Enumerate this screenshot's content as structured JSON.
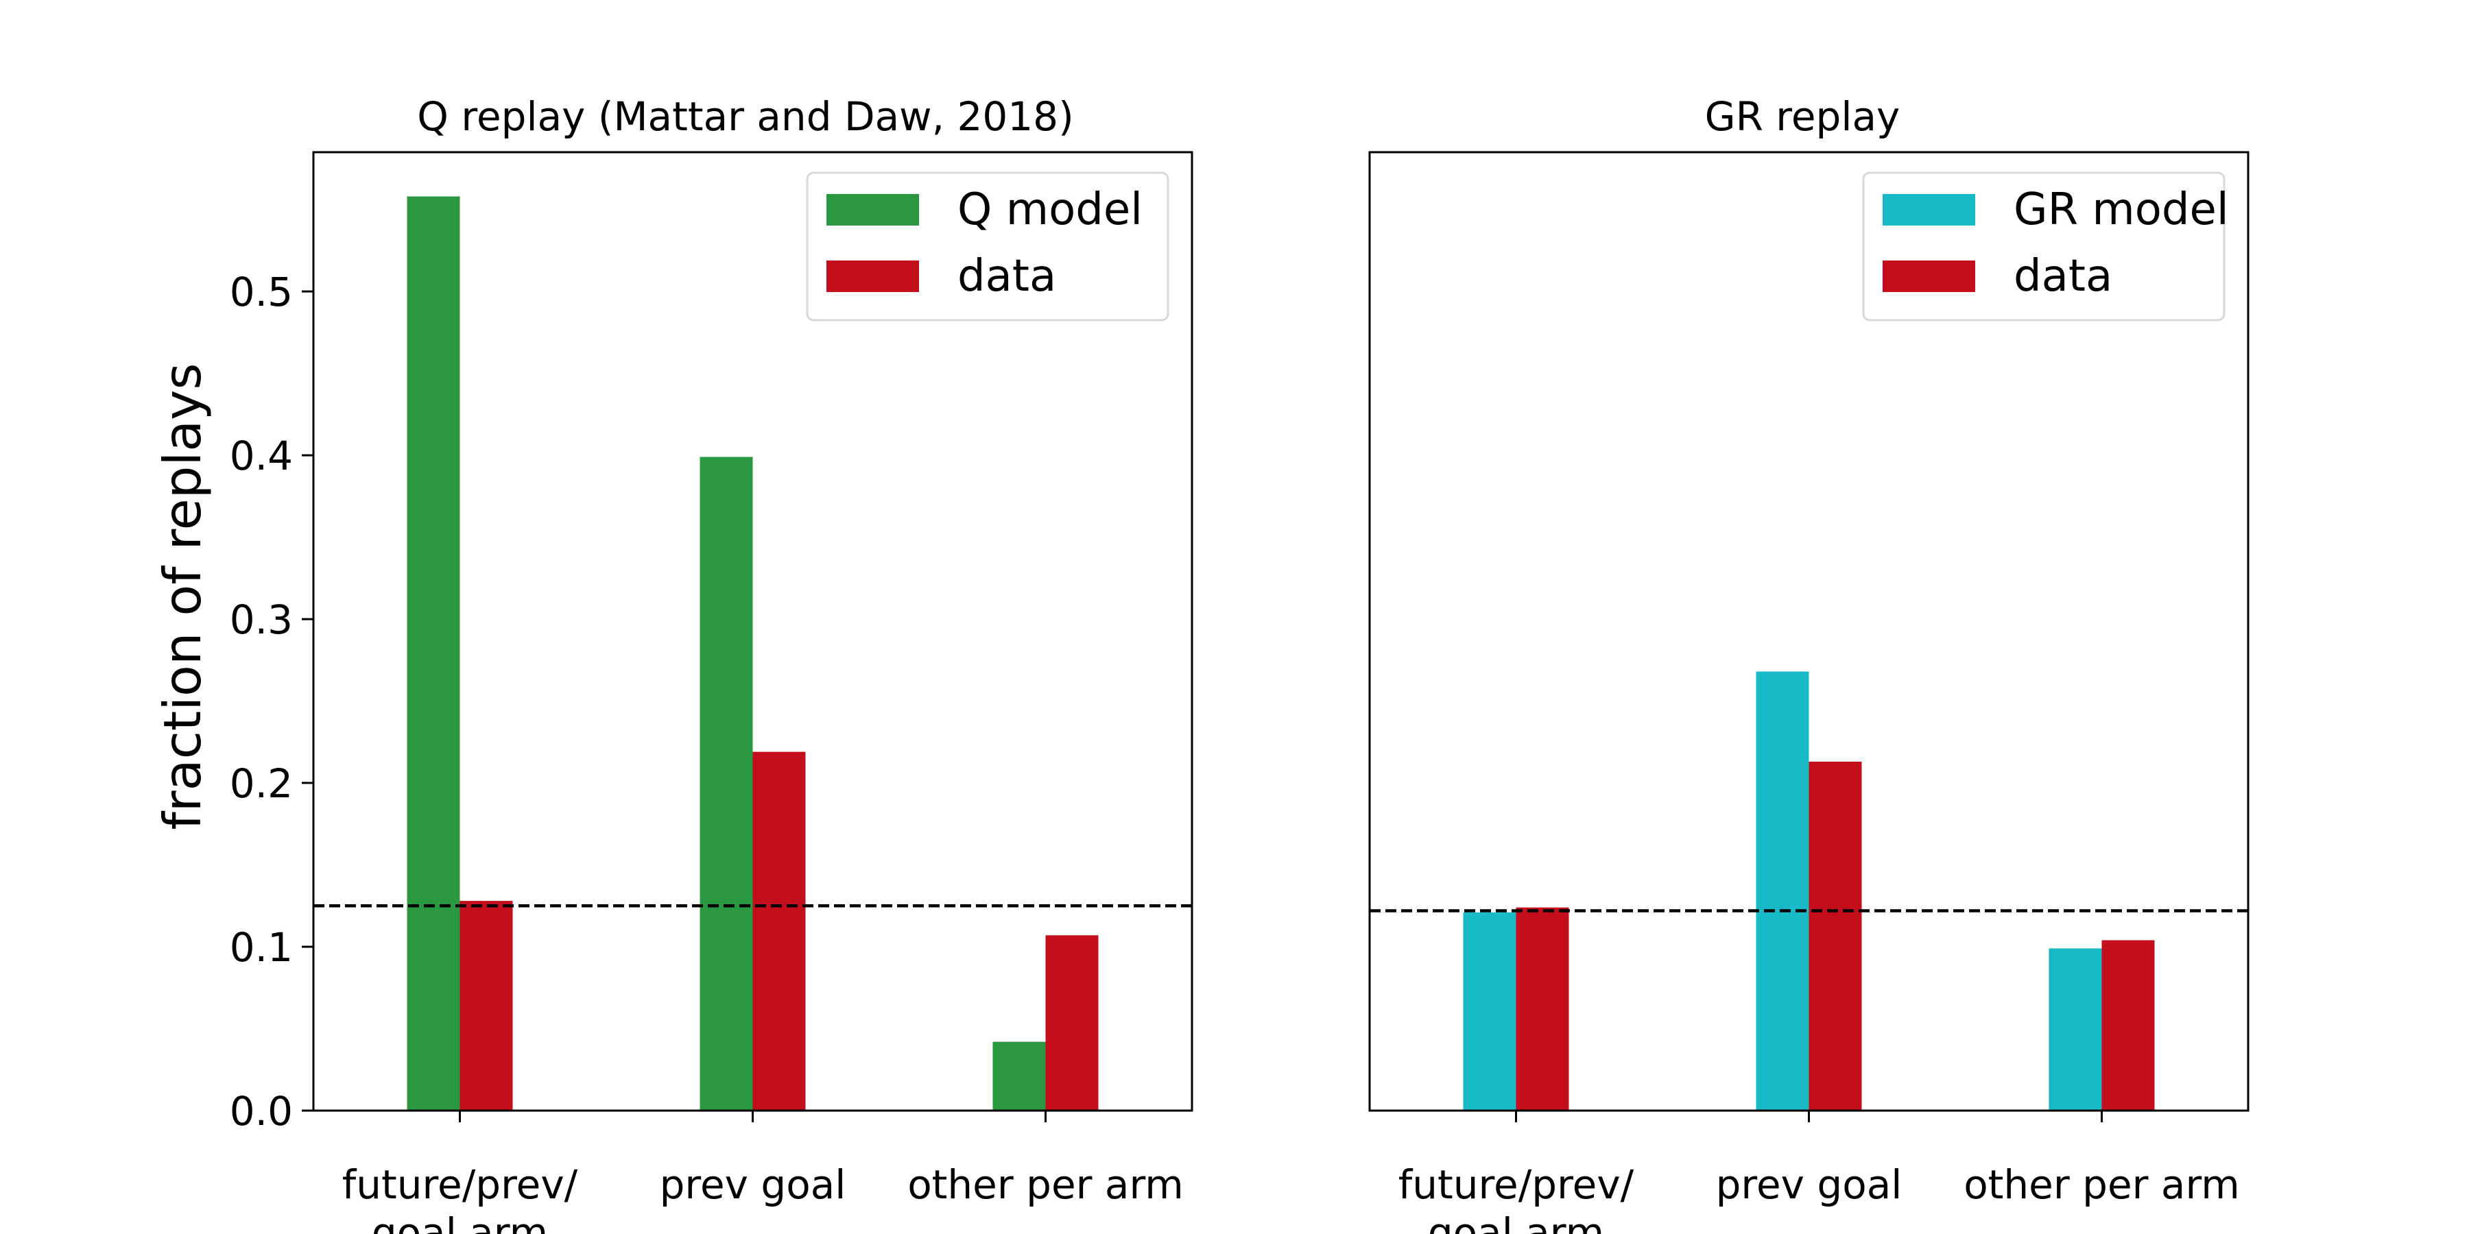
{
  "figure": {
    "ylabel": "fraction of replays"
  },
  "chart_data": [
    {
      "type": "bar",
      "title": "Q replay (Mattar and Daw, 2018)",
      "xlabel": "",
      "ylabel": "fraction of replays",
      "categories": [
        [
          "future/prev/",
          "goal arm"
        ],
        [
          "prev goal"
        ],
        [
          "other per arm"
        ]
      ],
      "series": [
        {
          "name": "Q model",
          "color": "#2a9841",
          "values": [
            0.558,
            0.399,
            0.042
          ]
        },
        {
          "name": "data",
          "color": "#c50e1b",
          "values": [
            0.128,
            0.219,
            0.107
          ]
        }
      ],
      "reference_line": {
        "value": 0.125,
        "style": "dashed",
        "color": "#000000"
      },
      "ylim": [
        0,
        0.585
      ],
      "yticks": [
        "0.0",
        "0.1",
        "0.2",
        "0.3",
        "0.4",
        "0.5"
      ],
      "ytick_values": [
        0,
        0.1,
        0.2,
        0.3,
        0.4,
        0.5
      ],
      "legend": "top-right",
      "grid": false
    },
    {
      "type": "bar",
      "title": "GR replay",
      "xlabel": "",
      "ylabel": "",
      "categories": [
        [
          "future/prev/",
          "goal arm"
        ],
        [
          "prev goal"
        ],
        [
          "other per arm"
        ]
      ],
      "series": [
        {
          "name": "GR model",
          "color": "#18bac8",
          "values": [
            0.121,
            0.268,
            0.099
          ]
        },
        {
          "name": "data",
          "color": "#c50e1b",
          "values": [
            0.124,
            0.213,
            0.104
          ]
        }
      ],
      "reference_line": {
        "value": 0.122,
        "style": "dashed",
        "color": "#000000"
      },
      "ylim": [
        0,
        0.585
      ],
      "yticks": [],
      "ytick_values": [],
      "legend": "top-right",
      "grid": false
    }
  ]
}
